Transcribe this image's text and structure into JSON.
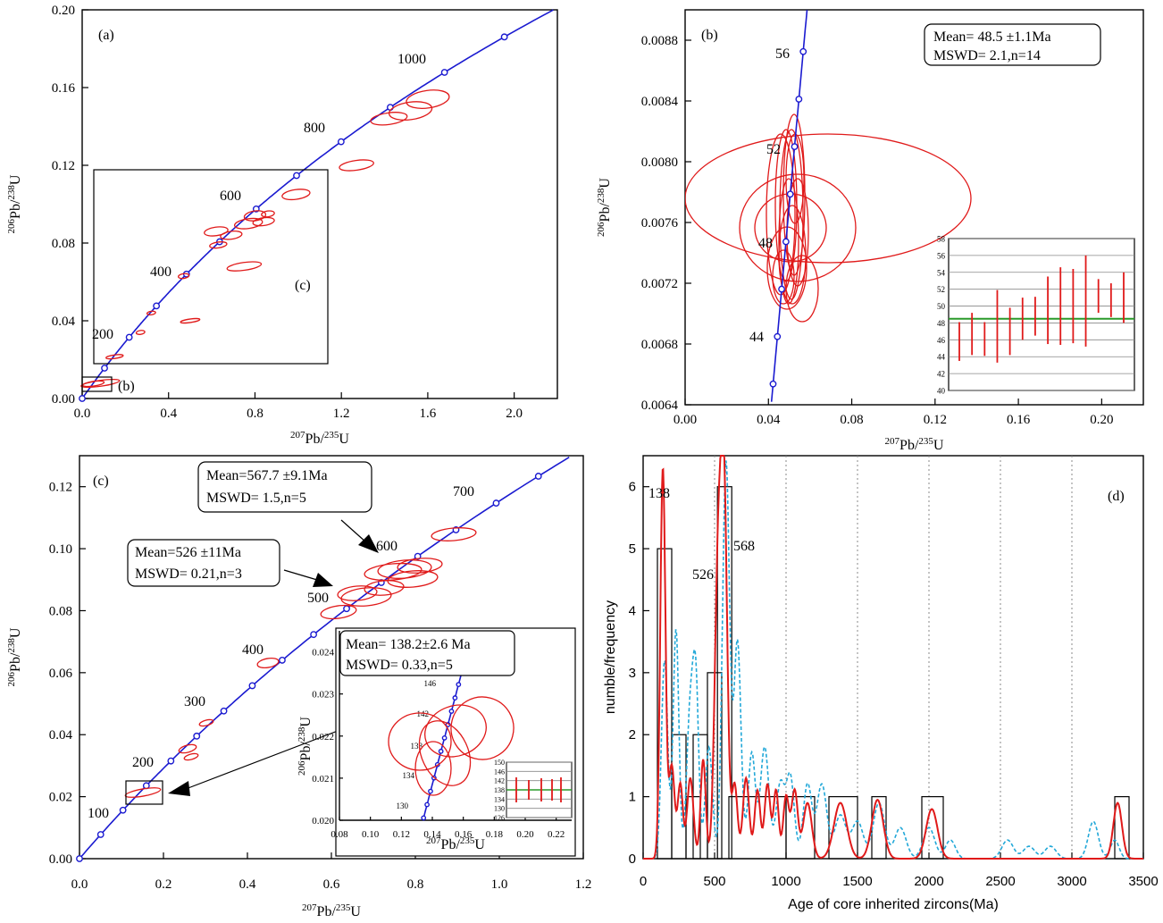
{
  "chart_data": [
    {
      "panel": "(a)",
      "type": "scatter",
      "title": "",
      "xlabel_mass": "207",
      "xlabel_el": "Pb/",
      "xlabel_mass2": "235",
      "xlabel_el2": "U",
      "ylabel_mass": "206",
      "ylabel_el": "Pb/",
      "ylabel_mass2": "238",
      "ylabel_el2": "U",
      "xlim": [
        0,
        2.2
      ],
      "ylim": [
        0,
        0.2
      ],
      "xticks": [
        "0.0",
        "0.4",
        "0.8",
        "1.2",
        "1.6",
        "2.0"
      ],
      "yticks": [
        "0.00",
        "0.04",
        "0.08",
        "0.12",
        "0.16",
        "0.20"
      ],
      "concordia_age_labels": [
        "200",
        "400",
        "600",
        "800",
        "1000"
      ],
      "inset_labels": [
        "(c)",
        "(b)"
      ],
      "ellipses": [
        {
          "x": 0.084,
          "y": 0.0078,
          "rx": 0.09,
          "ry": 0.0015
        },
        {
          "x": 0.052,
          "y": 0.0076,
          "rx": 0.05,
          "ry": 0.0012
        },
        {
          "x": 0.15,
          "y": 0.0215,
          "rx": 0.04,
          "ry": 0.0009
        },
        {
          "x": 0.27,
          "y": 0.034,
          "rx": 0.02,
          "ry": 0.001
        },
        {
          "x": 0.32,
          "y": 0.044,
          "rx": 0.02,
          "ry": 0.0009
        },
        {
          "x": 0.5,
          "y": 0.04,
          "rx": 0.045,
          "ry": 0.0009
        },
        {
          "x": 0.47,
          "y": 0.063,
          "rx": 0.025,
          "ry": 0.0012
        },
        {
          "x": 0.63,
          "y": 0.079,
          "rx": 0.04,
          "ry": 0.0015
        },
        {
          "x": 0.62,
          "y": 0.086,
          "rx": 0.055,
          "ry": 0.0022
        },
        {
          "x": 0.69,
          "y": 0.084,
          "rx": 0.05,
          "ry": 0.002
        },
        {
          "x": 0.77,
          "y": 0.09,
          "rx": 0.065,
          "ry": 0.0025
        },
        {
          "x": 0.8,
          "y": 0.094,
          "rx": 0.05,
          "ry": 0.0025
        },
        {
          "x": 0.84,
          "y": 0.091,
          "rx": 0.05,
          "ry": 0.002
        },
        {
          "x": 0.86,
          "y": 0.095,
          "rx": 0.03,
          "ry": 0.0015
        },
        {
          "x": 0.75,
          "y": 0.068,
          "rx": 0.08,
          "ry": 0.002
        },
        {
          "x": 0.99,
          "y": 0.105,
          "rx": 0.065,
          "ry": 0.0025
        },
        {
          "x": 1.27,
          "y": 0.12,
          "rx": 0.08,
          "ry": 0.0025
        },
        {
          "x": 1.42,
          "y": 0.144,
          "rx": 0.085,
          "ry": 0.003
        },
        {
          "x": 1.52,
          "y": 0.148,
          "rx": 0.1,
          "ry": 0.0045
        },
        {
          "x": 1.6,
          "y": 0.154,
          "rx": 0.1,
          "ry": 0.0045
        }
      ]
    },
    {
      "panel": "(b)",
      "type": "scatter",
      "xlabel_mass": "207",
      "xlabel_el": "Pb/",
      "xlabel_mass2": "235",
      "xlabel_el2": "U",
      "ylabel_mass": "206",
      "ylabel_el": "Pb/",
      "ylabel_mass2": "238",
      "ylabel_el2": "U",
      "xlim": [
        0,
        0.22
      ],
      "ylim": [
        0.0064,
        0.009
      ],
      "xticks": [
        "0.00",
        "0.04",
        "0.08",
        "0.12",
        "0.16",
        "0.20"
      ],
      "yticks": [
        "0.0064",
        "0.0068",
        "0.0072",
        "0.0076",
        "0.0080",
        "0.0084",
        "0.0088"
      ],
      "concordia_age_labels": [
        "44",
        "48",
        "52",
        "56"
      ],
      "mean_text": "Mean= 48.5  ±1.1Ma",
      "mswd_text": "MSWD= 2.1,n=14",
      "inset_bar": {
        "yticks": [
          "40",
          "42",
          "44",
          "46",
          "48",
          "50",
          "52",
          "54",
          "56",
          "58"
        ],
        "mean": 48.5,
        "ages": [
          45.8,
          46.7,
          46.1,
          47.6,
          47.0,
          48.5,
          48.8,
          49.5,
          50.0,
          50.0,
          50.6,
          51.2,
          50.7,
          51.0
        ],
        "errors": [
          2.3,
          2.5,
          2.0,
          4.3,
          2.8,
          2.5,
          2.3,
          4.0,
          4.6,
          4.4,
          5.4,
          2.0,
          2.0,
          3.0
        ]
      }
    },
    {
      "panel": "(c)",
      "type": "scatter",
      "xlabel_mass": "207",
      "xlabel_el": "Pb/",
      "xlabel_mass2": "235",
      "xlabel_el2": "U",
      "ylabel_mass": "206",
      "ylabel_el": "Pb/",
      "ylabel_mass2": "238",
      "ylabel_el2": "U",
      "xlim": [
        0,
        1.2
      ],
      "ylim": [
        0,
        0.13
      ],
      "xticks": [
        "0.0",
        "0.2",
        "0.4",
        "0.6",
        "0.8",
        "1.0",
        "1.2"
      ],
      "yticks": [
        "0.00",
        "0.02",
        "0.04",
        "0.06",
        "0.08",
        "0.10",
        "0.12"
      ],
      "concordia_age_labels": [
        "100",
        "200",
        "300",
        "400",
        "500",
        "600",
        "700"
      ],
      "box1_mean": "Mean=567.7 ±9.1Ma",
      "box1_mswd": "MSWD= 1.5,n=5",
      "box2_mean": "Mean=526 ±11Ma",
      "box2_mswd": "MSWD= 0.21,n=3",
      "inset": {
        "mean_text": "Mean= 138.2±2.6 Ma",
        "mswd_text": "MSWD= 0.33,n=5",
        "xticks": [
          "0.08",
          "0.10",
          "0.12",
          "0.14",
          "0.16",
          "0.18",
          "0.20",
          "0.22"
        ],
        "yticks": [
          "0.020",
          "0.021",
          "0.022",
          "0.023",
          "0.024"
        ],
        "age_labels": [
          "130",
          "134",
          "138",
          "142",
          "146"
        ],
        "bar_yticks": [
          "150",
          "146",
          "142",
          "138",
          "134",
          "130",
          "126"
        ]
      }
    },
    {
      "panel": "(d)",
      "type": "bar",
      "xlabel": "Age  of  core inherited zircons(Ma)",
      "ylabel": "numble/frequency",
      "xlim": [
        0,
        3500
      ],
      "ylim": [
        0,
        6.5
      ],
      "xticks": [
        "0",
        "500",
        "1000",
        "1500",
        "2000",
        "2500",
        "3000",
        "3500"
      ],
      "yticks": [
        "0",
        "1",
        "2",
        "3",
        "4",
        "5",
        "6"
      ],
      "peak_labels": [
        "138",
        "526",
        "568"
      ],
      "histogram": [
        {
          "x0": 100,
          "x1": 200,
          "count": 5
        },
        {
          "x0": 200,
          "x1": 300,
          "count": 2
        },
        {
          "x0": 300,
          "x1": 400,
          "count": 1
        },
        {
          "x0": 350,
          "x1": 450,
          "count": 2
        },
        {
          "x0": 450,
          "x1": 550,
          "count": 3
        },
        {
          "x0": 520,
          "x1": 620,
          "count": 6
        },
        {
          "x0": 600,
          "x1": 1000,
          "count": 1
        },
        {
          "x0": 1000,
          "x1": 1200,
          "count": 1
        },
        {
          "x0": 1300,
          "x1": 1500,
          "count": 1
        },
        {
          "x0": 1600,
          "x1": 1700,
          "count": 1
        },
        {
          "x0": 1950,
          "x1": 2100,
          "count": 1
        },
        {
          "x0": 3300,
          "x1": 3400,
          "count": 1
        }
      ]
    }
  ]
}
